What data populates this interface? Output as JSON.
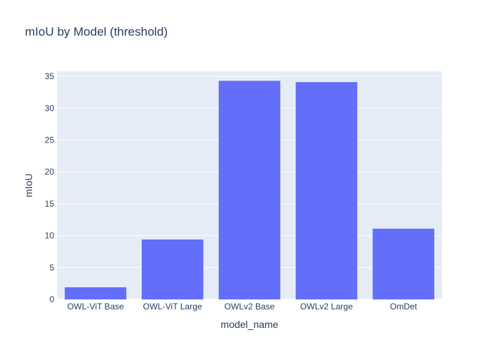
{
  "chart_data": {
    "type": "bar",
    "title": "mIoU by Model (threshold)",
    "xlabel": "model_name",
    "ylabel": "mIoU",
    "categories": [
      "OWL-ViT Base",
      "OWL-ViT Large",
      "OWLv2 Base",
      "OWLv2 Large",
      "OmDet"
    ],
    "values": [
      1.9,
      9.4,
      34.3,
      34.1,
      11.1
    ],
    "ylim": [
      0,
      35.8
    ],
    "yticks": [
      0,
      5,
      10,
      15,
      20,
      25,
      30,
      35
    ],
    "grid": true,
    "legend": "none"
  },
  "colors": {
    "bar": "#636efa",
    "plot_background": "#e5ecf6",
    "grid": "#ffffff",
    "text": "#2a3f5f"
  }
}
